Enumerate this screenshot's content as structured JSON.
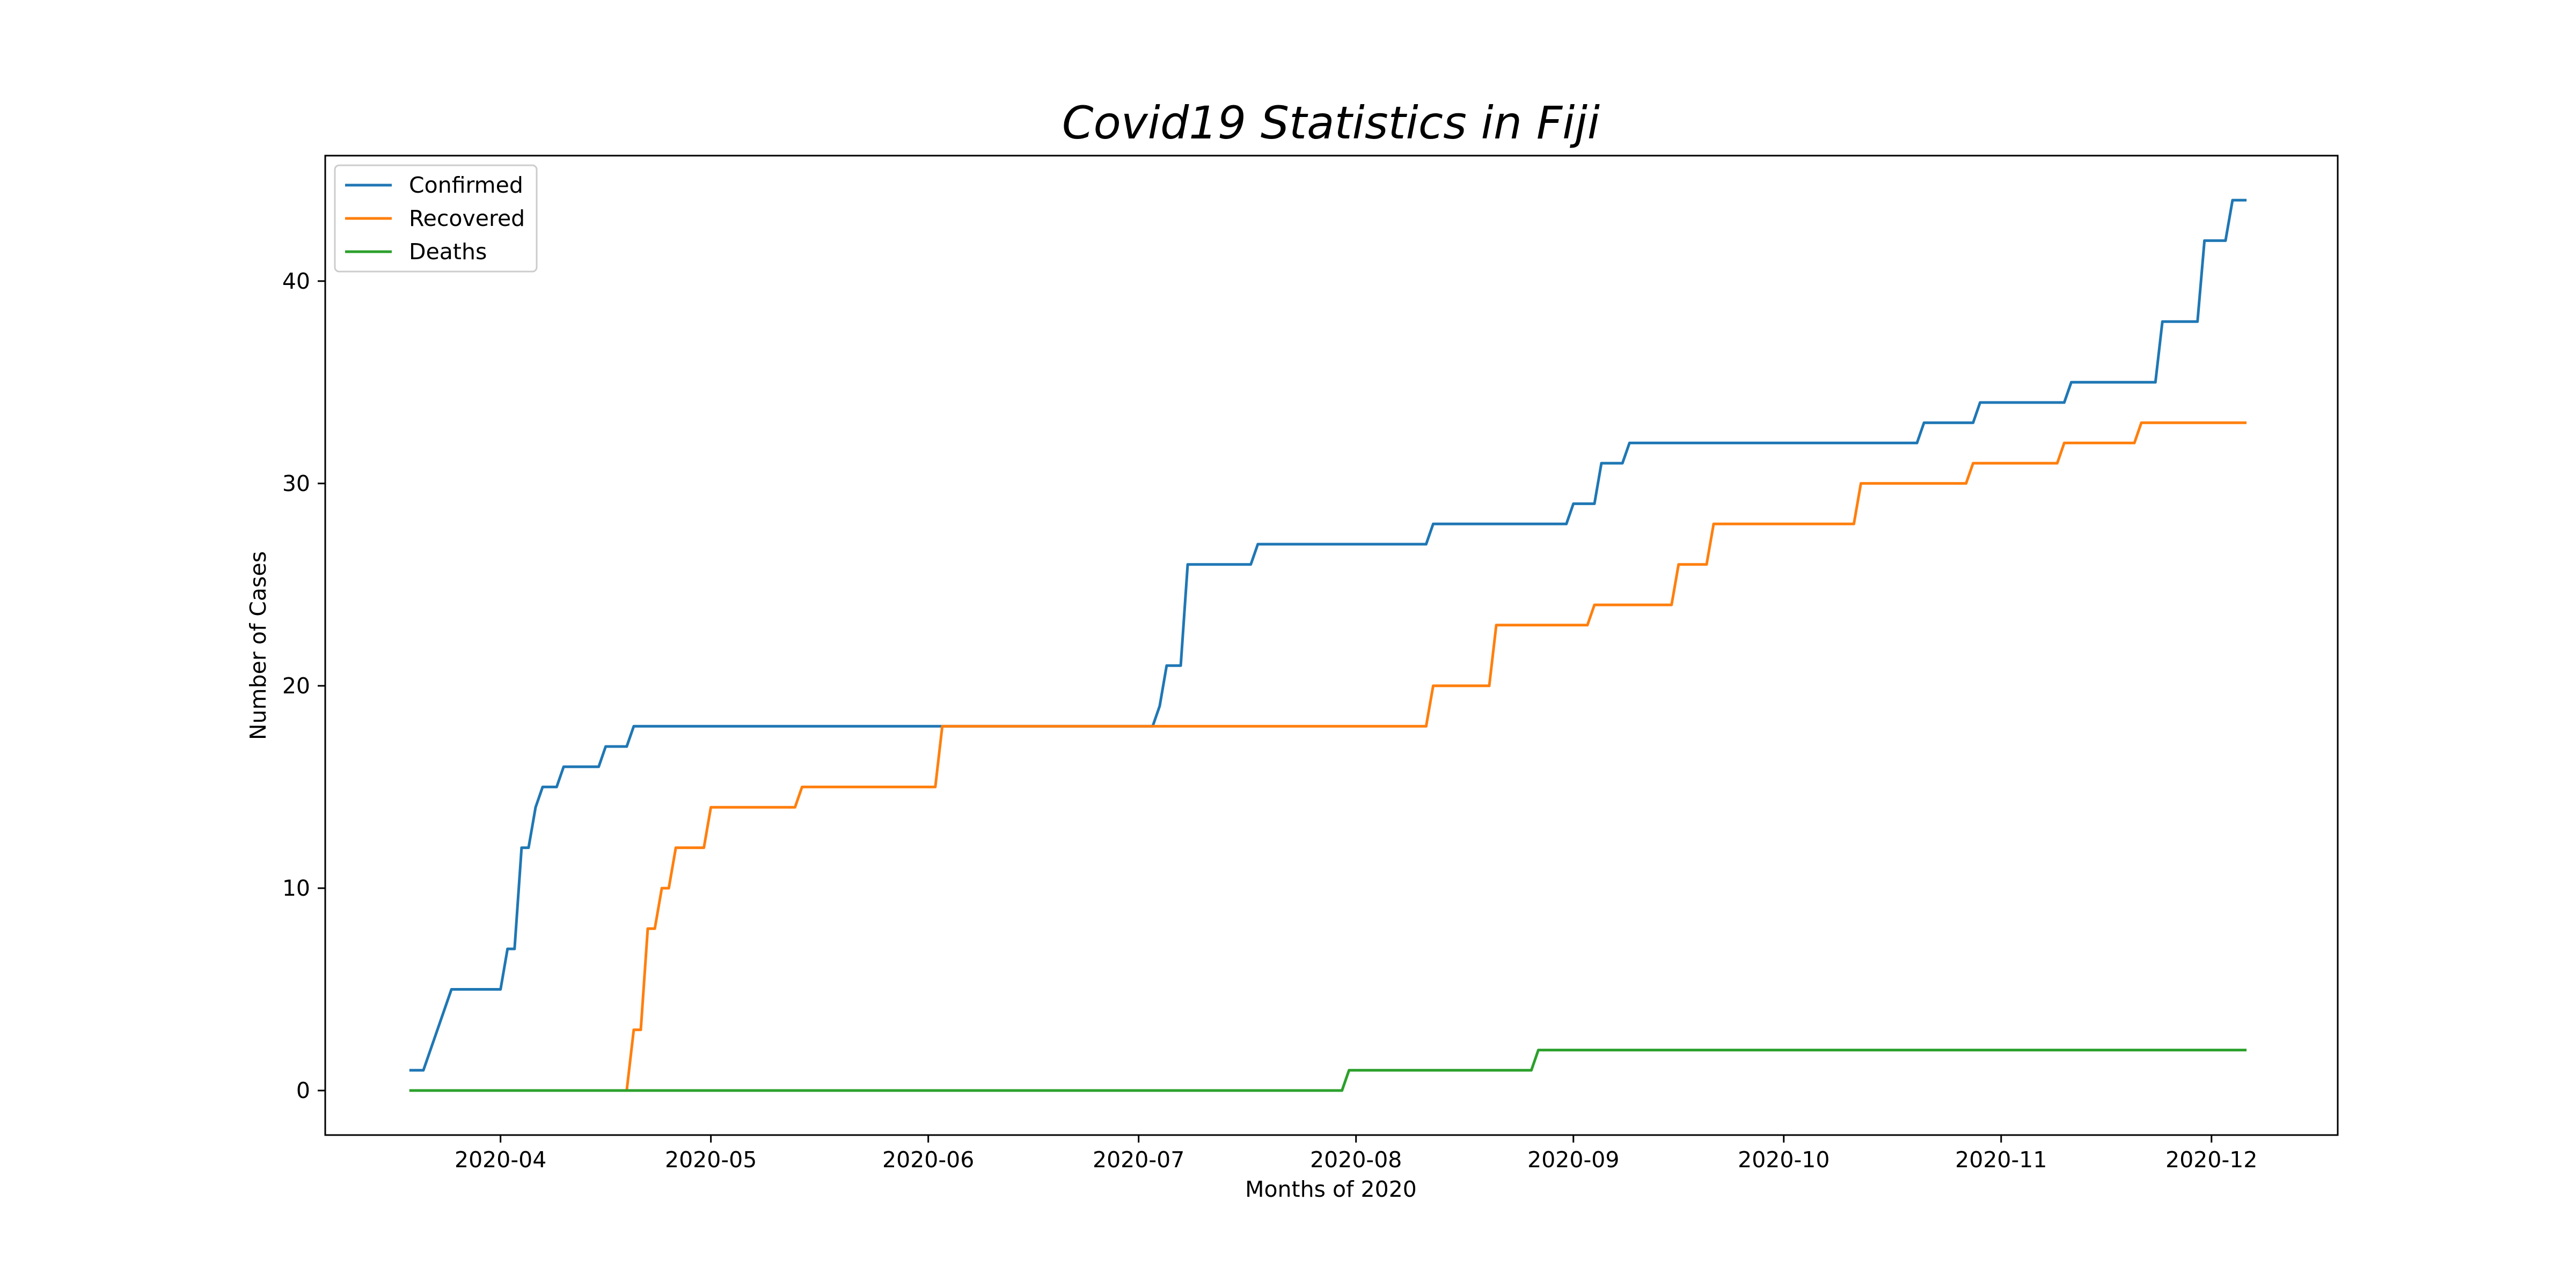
{
  "chart_data": {
    "type": "line",
    "title": "Covid19 Statistics in Fiji",
    "xlabel": "Months of 2020",
    "ylabel": "Number of Cases",
    "grid": false,
    "legend_position": "top-left",
    "xlim": [
      "2020-03-07",
      "2020-12-19"
    ],
    "ylim": [
      -2.2,
      46.2
    ],
    "x_ticks": [
      "2020-04",
      "2020-05",
      "2020-06",
      "2020-07",
      "2020-08",
      "2020-09",
      "2020-10",
      "2020-11",
      "2020-12"
    ],
    "x_tick_dates": [
      "2020-04-01",
      "2020-05-01",
      "2020-06-01",
      "2020-07-01",
      "2020-08-01",
      "2020-09-01",
      "2020-10-01",
      "2020-11-01",
      "2020-12-01"
    ],
    "y_ticks": [
      0,
      10,
      20,
      30,
      40
    ],
    "series": [
      {
        "name": "Confirmed",
        "color": "#1f77b4",
        "points": [
          [
            "2020-03-19",
            1
          ],
          [
            "2020-03-21",
            1
          ],
          [
            "2020-03-25",
            5
          ],
          [
            "2020-04-01",
            5
          ],
          [
            "2020-04-02",
            7
          ],
          [
            "2020-04-03",
            7
          ],
          [
            "2020-04-04",
            12
          ],
          [
            "2020-04-05",
            12
          ],
          [
            "2020-04-06",
            14
          ],
          [
            "2020-04-07",
            15
          ],
          [
            "2020-04-09",
            15
          ],
          [
            "2020-04-10",
            16
          ],
          [
            "2020-04-15",
            16
          ],
          [
            "2020-04-16",
            17
          ],
          [
            "2020-04-19",
            17
          ],
          [
            "2020-04-20",
            18
          ],
          [
            "2020-07-03",
            18
          ],
          [
            "2020-07-04",
            19
          ],
          [
            "2020-07-05",
            21
          ],
          [
            "2020-07-07",
            21
          ],
          [
            "2020-07-08",
            26
          ],
          [
            "2020-07-17",
            26
          ],
          [
            "2020-07-18",
            27
          ],
          [
            "2020-08-11",
            27
          ],
          [
            "2020-08-12",
            28
          ],
          [
            "2020-08-31",
            28
          ],
          [
            "2020-09-01",
            29
          ],
          [
            "2020-09-04",
            29
          ],
          [
            "2020-09-05",
            31
          ],
          [
            "2020-09-08",
            31
          ],
          [
            "2020-09-09",
            32
          ],
          [
            "2020-10-20",
            32
          ],
          [
            "2020-10-21",
            33
          ],
          [
            "2020-10-28",
            33
          ],
          [
            "2020-10-29",
            34
          ],
          [
            "2020-11-10",
            34
          ],
          [
            "2020-11-11",
            35
          ],
          [
            "2020-11-23",
            35
          ],
          [
            "2020-11-24",
            38
          ],
          [
            "2020-11-29",
            38
          ],
          [
            "2020-11-30",
            42
          ],
          [
            "2020-12-03",
            42
          ],
          [
            "2020-12-04",
            44
          ],
          [
            "2020-12-06",
            44
          ]
        ]
      },
      {
        "name": "Recovered",
        "color": "#ff7f0e",
        "points": [
          [
            "2020-03-19",
            0
          ],
          [
            "2020-04-19",
            0
          ],
          [
            "2020-04-20",
            3
          ],
          [
            "2020-04-21",
            3
          ],
          [
            "2020-04-22",
            8
          ],
          [
            "2020-04-23",
            8
          ],
          [
            "2020-04-24",
            10
          ],
          [
            "2020-04-25",
            10
          ],
          [
            "2020-04-26",
            12
          ],
          [
            "2020-04-30",
            12
          ],
          [
            "2020-05-01",
            14
          ],
          [
            "2020-05-13",
            14
          ],
          [
            "2020-05-14",
            15
          ],
          [
            "2020-06-02",
            15
          ],
          [
            "2020-06-03",
            18
          ],
          [
            "2020-08-11",
            18
          ],
          [
            "2020-08-12",
            20
          ],
          [
            "2020-08-20",
            20
          ],
          [
            "2020-08-21",
            23
          ],
          [
            "2020-09-03",
            23
          ],
          [
            "2020-09-04",
            24
          ],
          [
            "2020-09-15",
            24
          ],
          [
            "2020-09-16",
            26
          ],
          [
            "2020-09-20",
            26
          ],
          [
            "2020-09-21",
            28
          ],
          [
            "2020-10-11",
            28
          ],
          [
            "2020-10-12",
            30
          ],
          [
            "2020-10-27",
            30
          ],
          [
            "2020-10-28",
            31
          ],
          [
            "2020-11-09",
            31
          ],
          [
            "2020-11-10",
            32
          ],
          [
            "2020-11-20",
            32
          ],
          [
            "2020-11-21",
            33
          ],
          [
            "2020-12-06",
            33
          ]
        ]
      },
      {
        "name": "Deaths",
        "color": "#2ca02c",
        "points": [
          [
            "2020-03-19",
            0
          ],
          [
            "2020-07-30",
            0
          ],
          [
            "2020-07-31",
            1
          ],
          [
            "2020-08-26",
            1
          ],
          [
            "2020-08-27",
            2
          ],
          [
            "2020-12-06",
            2
          ]
        ]
      }
    ]
  }
}
